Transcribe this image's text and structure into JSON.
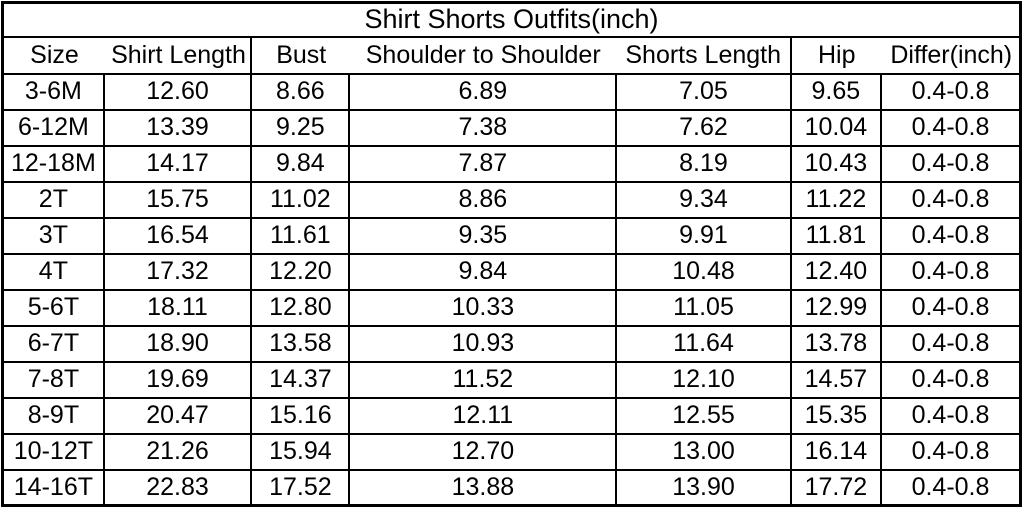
{
  "page": {
    "background": "#ffffff",
    "text_color": "#000000",
    "border_color": "#000000"
  },
  "table": {
    "title": "Shirt Shorts Outfits(inch)",
    "columns": [
      "Size",
      "Shirt Length",
      "Bust",
      "Shoulder to Shoulder",
      "Shorts Length",
      "Hip",
      "Differ(inch)"
    ],
    "rows": [
      [
        "3-6M",
        "12.60",
        "8.66",
        "6.89",
        "7.05",
        "9.65",
        "0.4-0.8"
      ],
      [
        "6-12M",
        "13.39",
        "9.25",
        "7.38",
        "7.62",
        "10.04",
        "0.4-0.8"
      ],
      [
        "12-18M",
        "14.17",
        "9.84",
        "7.87",
        "8.19",
        "10.43",
        "0.4-0.8"
      ],
      [
        "2T",
        "15.75",
        "11.02",
        "8.86",
        "9.34",
        "11.22",
        "0.4-0.8"
      ],
      [
        "3T",
        "16.54",
        "11.61",
        "9.35",
        "9.91",
        "11.81",
        "0.4-0.8"
      ],
      [
        "4T",
        "17.32",
        "12.20",
        "9.84",
        "10.48",
        "12.40",
        "0.4-0.8"
      ],
      [
        "5-6T",
        "18.11",
        "12.80",
        "10.33",
        "11.05",
        "12.99",
        "0.4-0.8"
      ],
      [
        "6-7T",
        "18.90",
        "13.58",
        "10.93",
        "11.64",
        "13.78",
        "0.4-0.8"
      ],
      [
        "7-8T",
        "19.69",
        "14.37",
        "11.52",
        "12.10",
        "14.57",
        "0.4-0.8"
      ],
      [
        "8-9T",
        "20.47",
        "15.16",
        "12.11",
        "12.55",
        "15.35",
        "0.4-0.8"
      ],
      [
        "10-12T",
        "21.26",
        "15.94",
        "12.70",
        "13.00",
        "16.14",
        "0.4-0.8"
      ],
      [
        "14-16T",
        "22.83",
        "17.52",
        "13.88",
        "13.90",
        "17.72",
        "0.4-0.8"
      ]
    ]
  }
}
